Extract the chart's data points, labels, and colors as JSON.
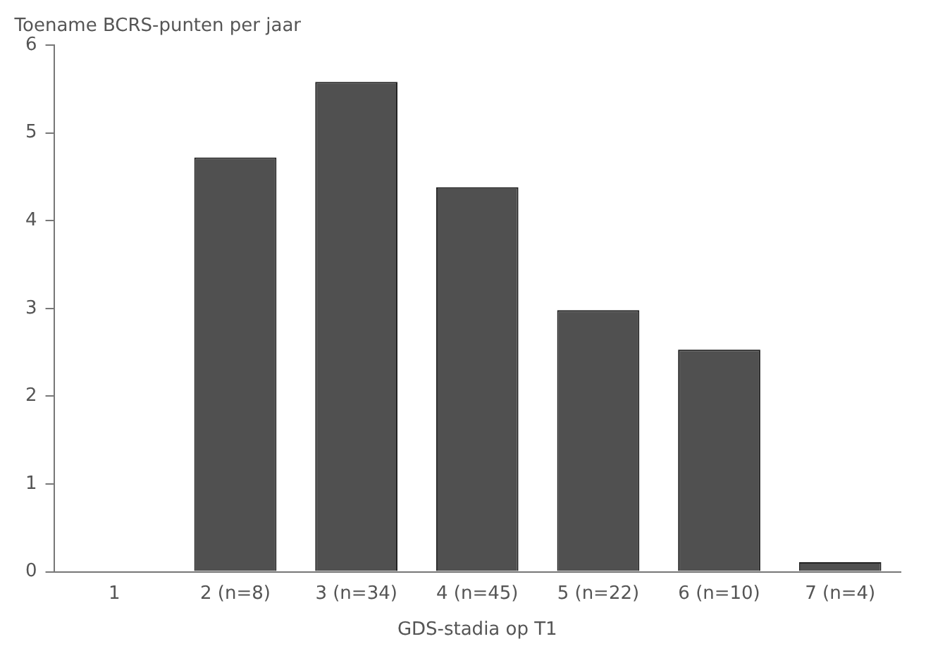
{
  "chart_data": {
    "type": "bar",
    "ylabel": "Toename BCRS-punten per jaar",
    "xlabel": "GDS-stadia op T1",
    "categories": [
      "1",
      "2 (n=8)",
      "3 (n=34)",
      "4 (n=45)",
      "5 (n=22)",
      "6 (n=10)",
      "7 (n=4)"
    ],
    "values": [
      0,
      4.72,
      5.58,
      4.38,
      2.98,
      2.53,
      0.11
    ],
    "color": "#505050",
    "ylim": [
      0,
      6
    ],
    "yticks": [
      0,
      1,
      2,
      3,
      4,
      5,
      6
    ],
    "grid": false,
    "legend": false
  }
}
